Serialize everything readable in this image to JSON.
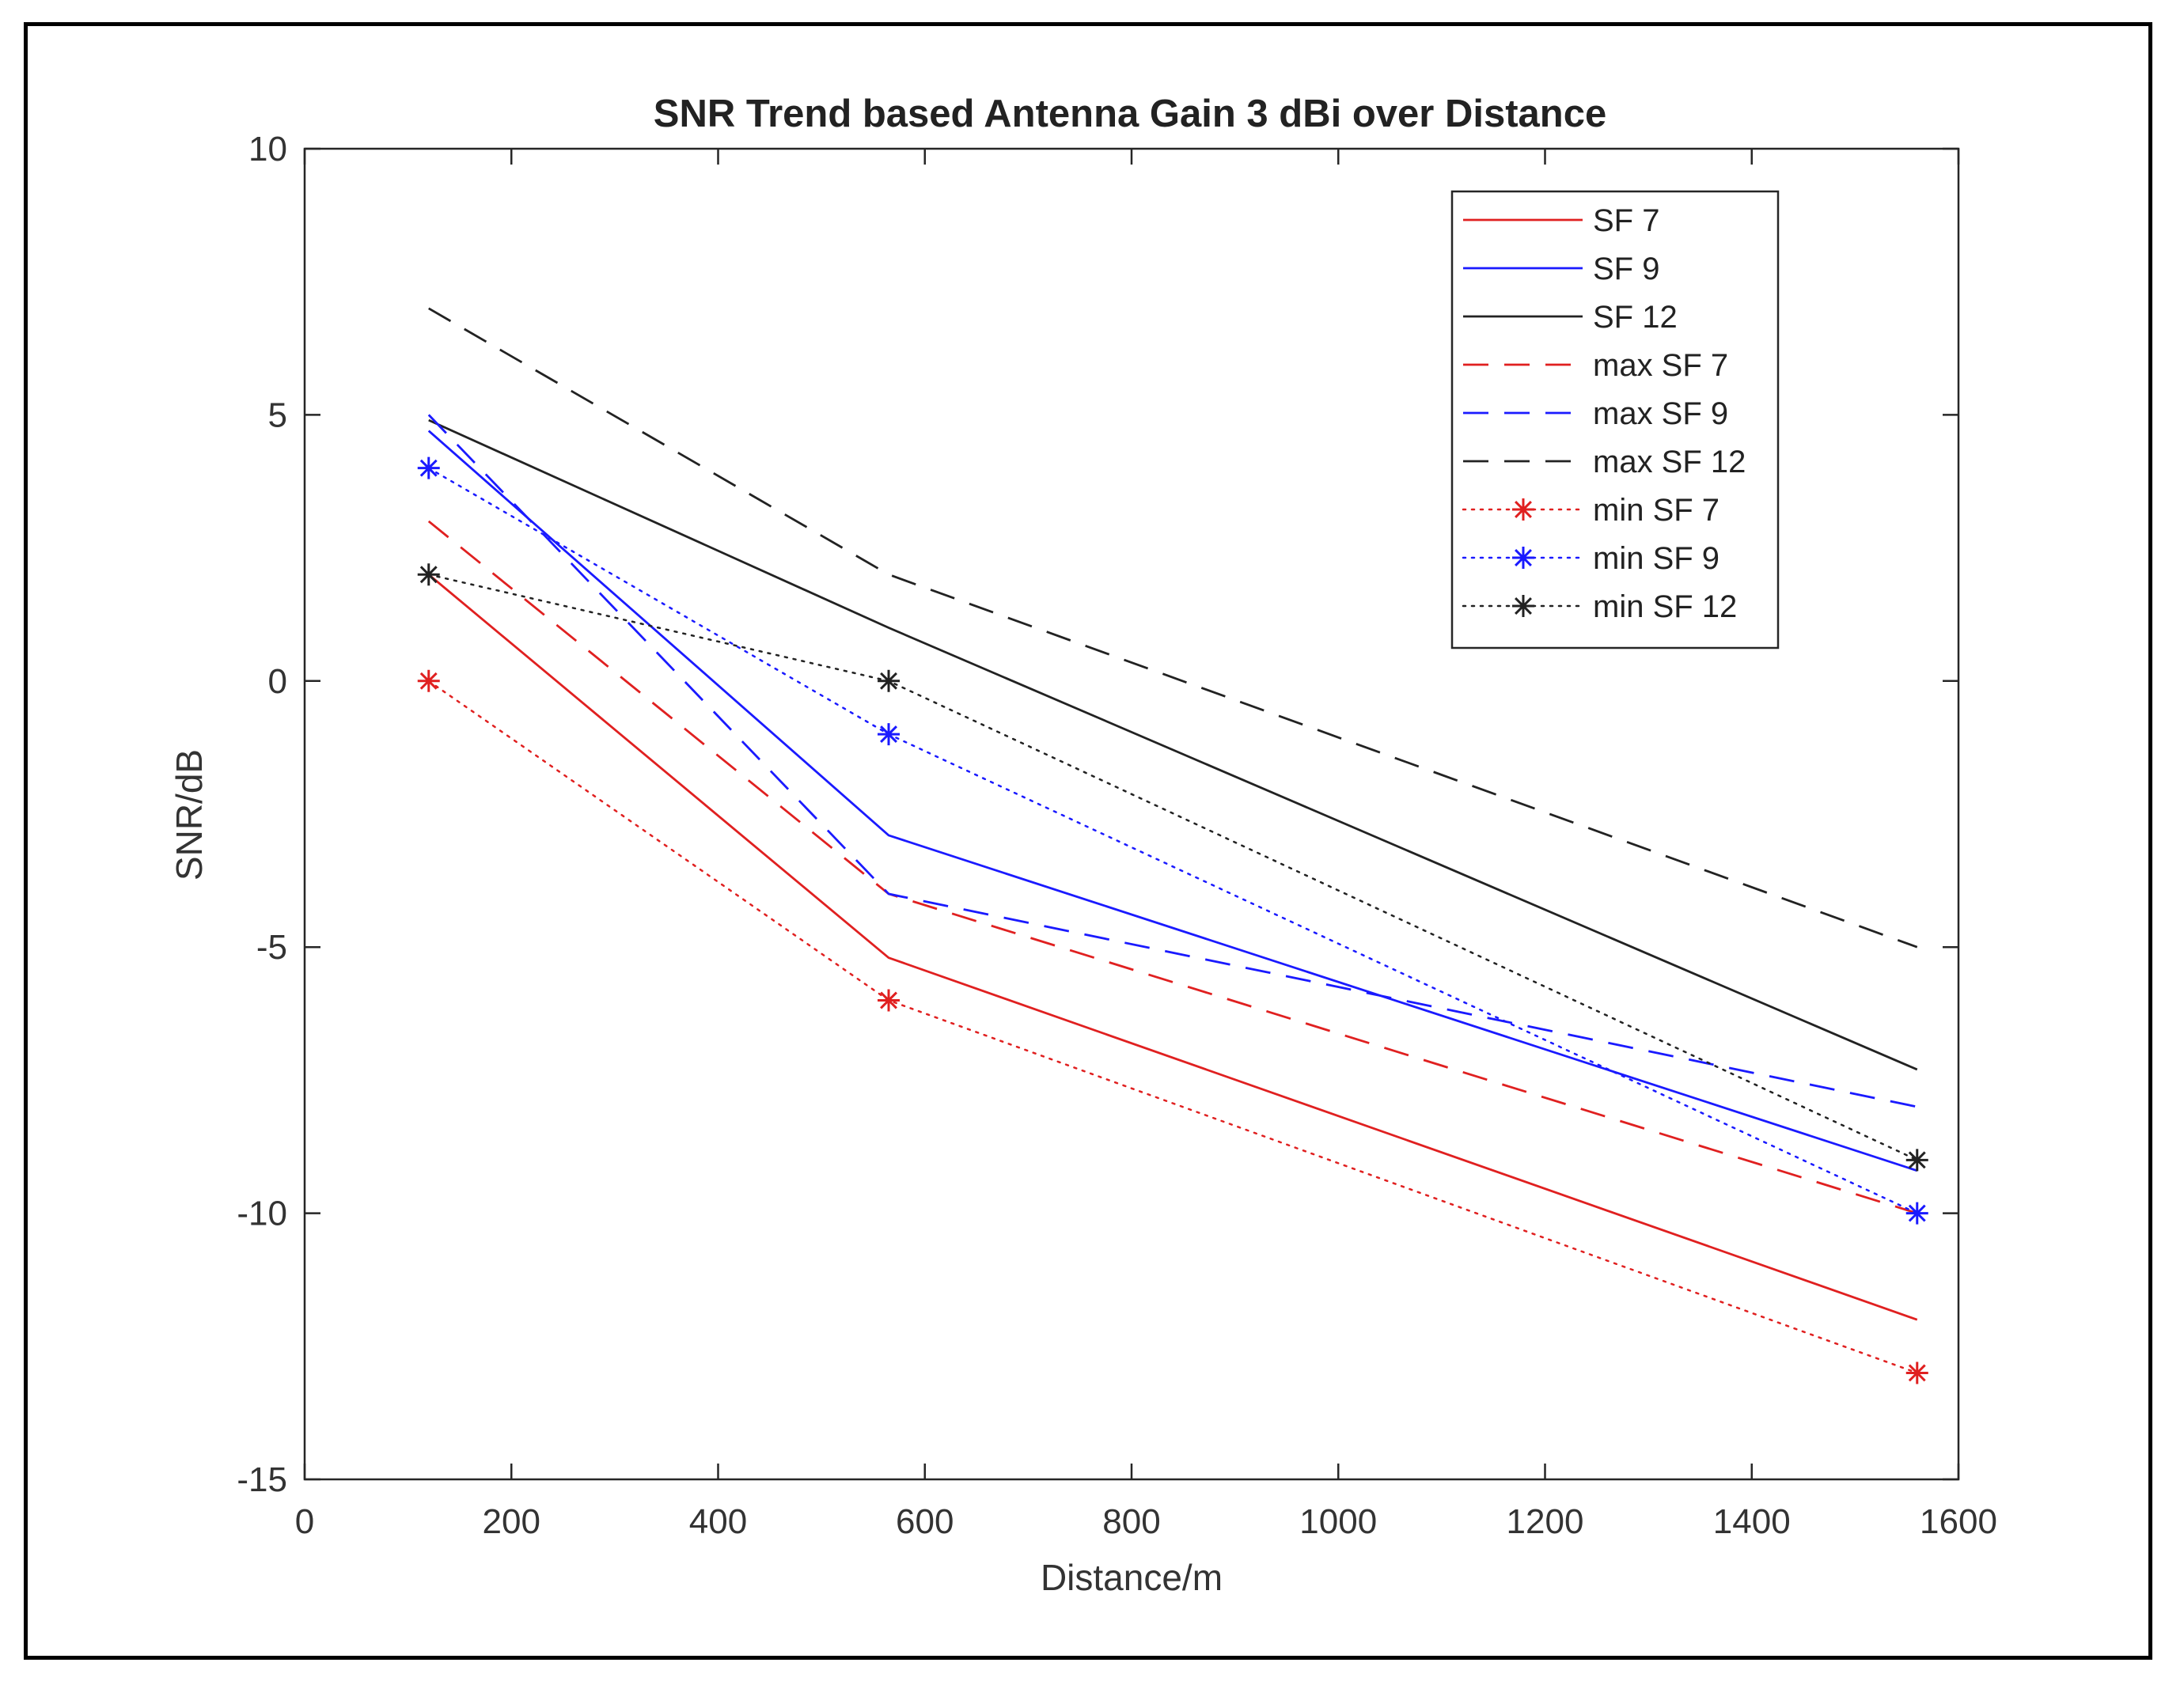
{
  "chart_data": {
    "type": "line",
    "title": "SNR Trend based Antenna Gain 3 dBi over Distance",
    "xlabel": "Distance/m",
    "ylabel": "SNR/dB",
    "xlim": [
      0,
      1600
    ],
    "ylim": [
      -15,
      10
    ],
    "xticks": [
      0,
      200,
      400,
      600,
      800,
      1000,
      1200,
      1400,
      1600
    ],
    "yticks": [
      -15,
      -10,
      -5,
      0,
      5,
      10
    ],
    "xtick_labels": [
      "0",
      "200",
      "400",
      "600",
      "800",
      "1000",
      "1200",
      "1400",
      "1600"
    ],
    "ytick_labels": [
      "-15",
      "-10",
      "-5",
      "0",
      "5",
      "10"
    ],
    "grid": false,
    "legend_position": "top-right",
    "series": [
      {
        "name": "SF 7",
        "color": "#e02020",
        "style": "solid",
        "marker": "none",
        "points": [
          [
            120,
            2.0
          ],
          [
            565,
            -5.2
          ],
          [
            1560,
            -12.0
          ]
        ]
      },
      {
        "name": "SF 9",
        "color": "#1a1aff",
        "style": "solid",
        "marker": "none",
        "points": [
          [
            120,
            4.7
          ],
          [
            565,
            -2.9
          ],
          [
            1560,
            -9.2
          ]
        ]
      },
      {
        "name": "SF 12",
        "color": "#222222",
        "style": "solid",
        "marker": "none",
        "points": [
          [
            120,
            4.9
          ],
          [
            565,
            1.0
          ],
          [
            1560,
            -7.3
          ]
        ]
      },
      {
        "name": "max SF 7",
        "color": "#e02020",
        "style": "dashed",
        "marker": "none",
        "points": [
          [
            120,
            3.0
          ],
          [
            565,
            -4.0
          ],
          [
            1560,
            -10.0
          ]
        ]
      },
      {
        "name": "max SF 9",
        "color": "#1a1aff",
        "style": "dashed",
        "marker": "none",
        "points": [
          [
            120,
            5.0
          ],
          [
            565,
            -4.0
          ],
          [
            1560,
            -8.0
          ]
        ]
      },
      {
        "name": "max SF 12",
        "color": "#222222",
        "style": "dashed",
        "marker": "none",
        "points": [
          [
            120,
            7.0
          ],
          [
            565,
            2.0
          ],
          [
            1560,
            -5.0
          ]
        ]
      },
      {
        "name": "min SF 7",
        "color": "#e02020",
        "style": "dotted",
        "marker": "star",
        "points": [
          [
            120,
            0.0
          ],
          [
            565,
            -6.0
          ],
          [
            1560,
            -13.0
          ]
        ]
      },
      {
        "name": "min SF 9",
        "color": "#1a1aff",
        "style": "dotted",
        "marker": "star",
        "points": [
          [
            120,
            4.0
          ],
          [
            565,
            -1.0
          ],
          [
            1560,
            -10.0
          ]
        ]
      },
      {
        "name": "min SF 12",
        "color": "#222222",
        "style": "dotted",
        "marker": "star",
        "points": [
          [
            120,
            2.0
          ],
          [
            565,
            0.0
          ],
          [
            1560,
            -9.0
          ]
        ]
      }
    ]
  }
}
